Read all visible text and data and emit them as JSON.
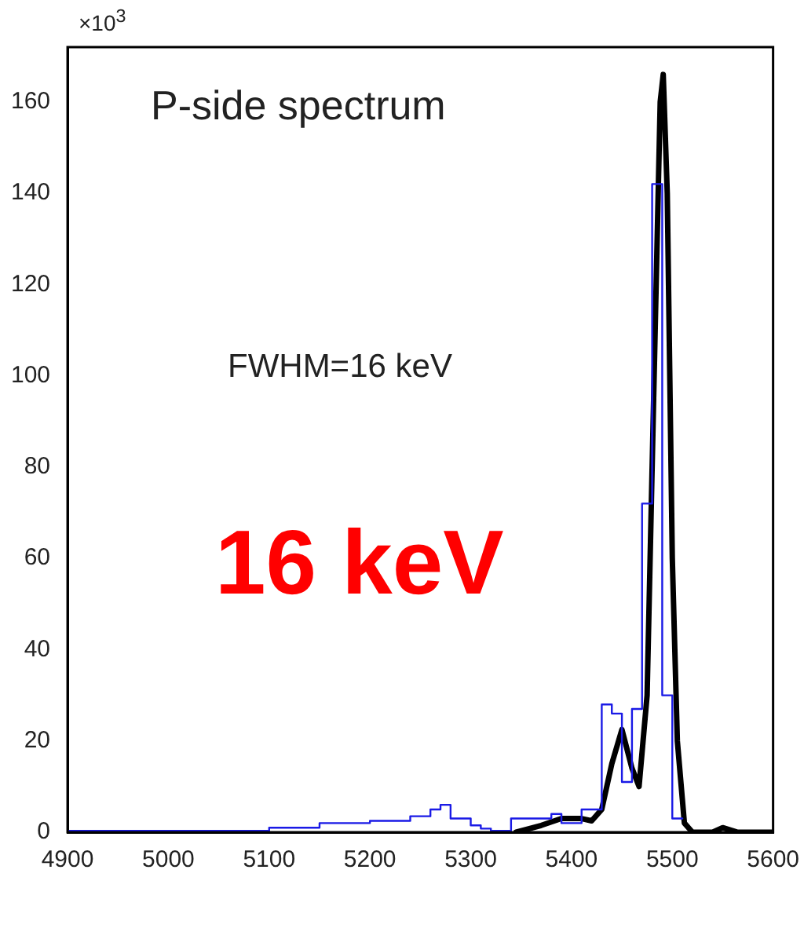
{
  "chart_data": {
    "type": "line",
    "ylabel": "×10$^{3}$",
    "xlim": [
      4900,
      5600
    ],
    "ylim": [
      0,
      172
    ],
    "xticks": [
      4900,
      5000,
      5100,
      5200,
      5300,
      5400,
      5500,
      5600
    ],
    "yticks": [
      0,
      20,
      40,
      60,
      80,
      100,
      120,
      140,
      160
    ],
    "grid": false,
    "legend": false,
    "marker": "none",
    "annotations": [
      "P-side spectrum",
      "FWHM=16 keV",
      "16 keV"
    ],
    "series": [
      {
        "type": "step",
        "color": "#1a1ae6",
        "x": [
          4900,
          5100,
          5150,
          5200,
          5240,
          5260,
          5270,
          5280,
          5300,
          5310,
          5320,
          5340,
          5380,
          5390,
          5410,
          5430,
          5440,
          5450,
          5460,
          5470,
          5480,
          5490,
          5500,
          5510
        ],
        "values": [
          0,
          0.3,
          1,
          2,
          2.5,
          3.5,
          5,
          6,
          3,
          1.5,
          0.8,
          0.3,
          3,
          4,
          2,
          5,
          28,
          26,
          11,
          27,
          72,
          142,
          30,
          3
        ]
      },
      {
        "type": "line",
        "color": "#000000",
        "x": [
          5345,
          5370,
          5390,
          5410,
          5420,
          5430,
          5440,
          5450,
          5460,
          5467,
          5475,
          5482,
          5488,
          5491,
          5495,
          5500,
          5505,
          5512,
          5520,
          5540,
          5550,
          5565,
          5600
        ],
        "values": [
          0,
          1.5,
          3,
          3,
          2.5,
          5,
          15,
          22.5,
          14,
          10,
          30,
          100,
          160,
          166,
          140,
          60,
          20,
          2,
          0,
          0,
          1,
          0,
          0
        ]
      }
    ]
  }
}
